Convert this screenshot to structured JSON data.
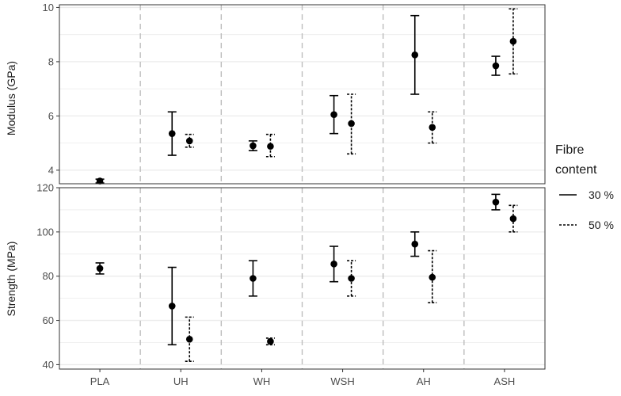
{
  "chart_data": [
    {
      "type": "errorbar",
      "panel": "top",
      "ylabel": "Modulus (GPa)",
      "ylim": [
        3.5,
        10.1
      ],
      "yticks": [
        4,
        6,
        8,
        10
      ],
      "categories": [
        "PLA",
        "UH",
        "WH",
        "WSH",
        "AH",
        "ASH"
      ],
      "grid": true,
      "series": [
        {
          "name": "30 %",
          "line_style": "solid",
          "points": [
            {
              "category": "PLA",
              "mean": 3.6,
              "lower": 3.53,
              "upper": 3.67
            },
            {
              "category": "UH",
              "mean": 5.35,
              "lower": 4.55,
              "upper": 6.15
            },
            {
              "category": "WH",
              "mean": 4.9,
              "lower": 4.72,
              "upper": 5.08
            },
            {
              "category": "WSH",
              "mean": 6.05,
              "lower": 5.35,
              "upper": 6.75
            },
            {
              "category": "AH",
              "mean": 8.25,
              "lower": 6.8,
              "upper": 9.7
            },
            {
              "category": "ASH",
              "mean": 7.85,
              "lower": 7.5,
              "upper": 8.2
            }
          ]
        },
        {
          "name": "50 %",
          "line_style": "dashed",
          "points": [
            {
              "category": "UH",
              "mean": 5.08,
              "lower": 4.85,
              "upper": 5.32
            },
            {
              "category": "WH",
              "mean": 4.88,
              "lower": 4.5,
              "upper": 5.32
            },
            {
              "category": "WSH",
              "mean": 5.72,
              "lower": 4.6,
              "upper": 6.8
            },
            {
              "category": "AH",
              "mean": 5.58,
              "lower": 5.0,
              "upper": 6.15
            },
            {
              "category": "ASH",
              "mean": 8.75,
              "lower": 7.55,
              "upper": 9.95
            }
          ]
        }
      ]
    },
    {
      "type": "errorbar",
      "panel": "bottom",
      "ylabel": "Strength (MPa)",
      "xlabel": "",
      "ylim": [
        38,
        120
      ],
      "yticks": [
        40,
        60,
        80,
        100,
        120
      ],
      "categories": [
        "PLA",
        "UH",
        "WH",
        "WSH",
        "AH",
        "ASH"
      ],
      "grid": true,
      "series": [
        {
          "name": "30 %",
          "line_style": "solid",
          "points": [
            {
              "category": "PLA",
              "mean": 83.5,
              "lower": 81.0,
              "upper": 86.0
            },
            {
              "category": "UH",
              "mean": 66.5,
              "lower": 49.0,
              "upper": 84.0
            },
            {
              "category": "WH",
              "mean": 79.0,
              "lower": 71.0,
              "upper": 87.0
            },
            {
              "category": "WSH",
              "mean": 85.5,
              "lower": 77.5,
              "upper": 93.5
            },
            {
              "category": "AH",
              "mean": 94.5,
              "lower": 89.0,
              "upper": 100.0
            },
            {
              "category": "ASH",
              "mean": 113.5,
              "lower": 110.0,
              "upper": 117.0
            }
          ]
        },
        {
          "name": "50 %",
          "line_style": "dashed",
          "points": [
            {
              "category": "UH",
              "mean": 51.5,
              "lower": 41.5,
              "upper": 61.5
            },
            {
              "category": "WH",
              "mean": 50.5,
              "lower": 49.0,
              "upper": 52.0
            },
            {
              "category": "WSH",
              "mean": 79.0,
              "lower": 71.0,
              "upper": 87.0
            },
            {
              "category": "AH",
              "mean": 79.5,
              "lower": 68.0,
              "upper": 91.5
            },
            {
              "category": "ASH",
              "mean": 106.0,
              "lower": 100.0,
              "upper": 112.0
            }
          ]
        }
      ]
    }
  ],
  "legend": {
    "title": "Fibre\ncontent",
    "placement": "right",
    "items": [
      {
        "label": "30 %",
        "line_style": "solid"
      },
      {
        "label": "50 %",
        "line_style": "dashed"
      }
    ]
  },
  "colors": {
    "panel_border": "#333333",
    "grid": "#ebebeb",
    "category_separator": "#bdbdbd",
    "mark": "#000000",
    "tick_text": "#4d4d4d"
  }
}
